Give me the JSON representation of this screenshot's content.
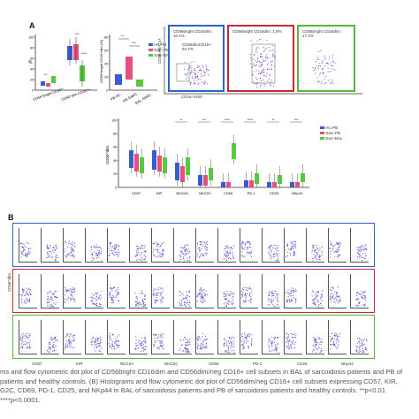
{
  "panel_a": {
    "letter": "A",
    "chart1": {
      "ylabel": "%",
      "categories": [
        "CD56^bright CD16^-",
        "CD56^dim CD16^+"
      ],
      "ytick_labels": [
        "0",
        "20",
        "40",
        "60",
        "80",
        "100"
      ],
      "sig": [
        "**",
        "***",
        "****"
      ]
    },
    "chart2": {
      "ylabel": "CD56^bright CD16^dim (%)",
      "categories": [
        "PB-HC",
        "PB-SARC",
        "BAL-SARC"
      ],
      "ytick_labels": [
        "0",
        "20",
        "40",
        "60",
        "80"
      ],
      "sig": [
        "**",
        "***"
      ]
    },
    "legend": [
      "HC-PB",
      "Sarc-PB",
      "Sarc-BAL"
    ],
    "flow_plots": [
      {
        "color": "#2a64c8",
        "gate_top": "CD56bright CD16dim: 10.1%",
        "gate_bottom": "CD56dimCD16+: 84.7%"
      },
      {
        "color": "#c8283c",
        "gate_top": "CD56bright CD16dim: 1.8%",
        "gate_bottom": ""
      },
      {
        "color": "#5ab43c",
        "gate_top": "CD56bright CD16dim: 17.2%",
        "gate_bottom": ""
      }
    ],
    "flow_xlabel": "CD16-V450",
    "flow_ylabel": "CD56-PE-Cy7"
  },
  "chart3": {
    "ylabel": "CD56^dim",
    "legend": [
      "HC-PB",
      "Sarc-PB",
      "Sarc-BAL"
    ],
    "categories": [
      "CD57",
      "KIR",
      "NKG2A",
      "NKG2C",
      "CD69",
      "PD-1",
      "CD25",
      "NKp44"
    ],
    "ytick_labels": [
      "0",
      "20",
      "40",
      "60",
      "80",
      "100"
    ],
    "sig": [
      "**",
      "***",
      "****",
      "****",
      "**",
      "***"
    ]
  },
  "panel_b": {
    "letter": "B",
    "ylabel": "CD56^dim",
    "rows": [
      {
        "name": "blue",
        "color": "#2a64c8"
      },
      {
        "name": "red",
        "color": "#c8283c"
      },
      {
        "name": "green",
        "color": "#5ab43c"
      }
    ],
    "xlabels": [
      "CD57",
      "KIR",
      "NKG2A",
      "NKG2C",
      "CD69",
      "PD-1",
      "CD25",
      "NKp44"
    ]
  },
  "caption": {
    "line1": "ms and flow cytometric dot plot of CD56bright CD16dim and CD56dim/neg CD16+ cell subsets in BAL of sarcoidosis patients and PB of",
    "line2": "patients and healthy controls. (B) Histograms and flow cytometric dot plot of CD56dim/neg CD16+ cell subsets expressing CD57, KIR,",
    "line3": "G2C, CD69, PD-1, CD25, and NKp44 in BAL of sarcoidosis patients and PB of sarcoidosis patients and healthy controls. **p<0.01",
    "line4": "****p<0.0001."
  }
}
